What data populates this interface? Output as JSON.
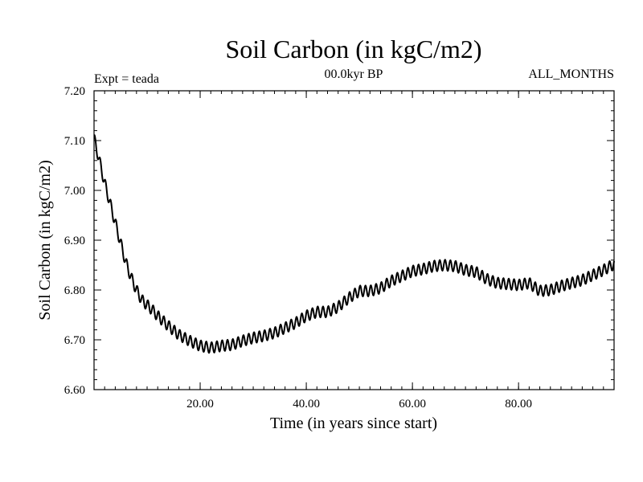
{
  "chart_data": {
    "type": "line",
    "title": "Soil Carbon (in kgC/m2)",
    "subtitle": "00.0kyr BP",
    "expt_label": "Expt = teada",
    "period_label": "ALL_MONTHS",
    "xlabel": "Time (in years since start)",
    "ylabel": "Soil Carbon (in kgC/m2)",
    "xlim": [
      0,
      98
    ],
    "ylim": [
      6.6,
      7.2
    ],
    "x_ticks": [
      20,
      40,
      60,
      80
    ],
    "x_tick_labels": [
      "20.00",
      "40.00",
      "60.00",
      "80.00"
    ],
    "y_ticks": [
      6.6,
      6.7,
      6.8,
      6.9,
      7.0,
      7.1,
      7.2
    ],
    "y_tick_labels": [
      "6.60",
      "6.70",
      "6.80",
      "6.90",
      "7.00",
      "7.10",
      "7.20"
    ],
    "line_color": "#000000",
    "seasonal_amplitude": 0.011,
    "series": [
      {
        "name": "Soil Carbon",
        "trend": [
          [
            0.0,
            7.105
          ],
          [
            1.0,
            7.06
          ],
          [
            2.0,
            7.015
          ],
          [
            3.0,
            6.975
          ],
          [
            4.0,
            6.935
          ],
          [
            5.0,
            6.895
          ],
          [
            6.0,
            6.855
          ],
          [
            7.0,
            6.825
          ],
          [
            8.0,
            6.8
          ],
          [
            9.0,
            6.78
          ],
          [
            10.0,
            6.77
          ],
          [
            11.0,
            6.76
          ],
          [
            12.0,
            6.748
          ],
          [
            14.0,
            6.728
          ],
          [
            16.0,
            6.71
          ],
          [
            18.0,
            6.698
          ],
          [
            20.0,
            6.688
          ],
          [
            22.0,
            6.684
          ],
          [
            24.0,
            6.688
          ],
          [
            26.0,
            6.69
          ],
          [
            28.0,
            6.698
          ],
          [
            30.0,
            6.704
          ],
          [
            32.0,
            6.708
          ],
          [
            34.0,
            6.714
          ],
          [
            36.0,
            6.724
          ],
          [
            38.0,
            6.734
          ],
          [
            40.0,
            6.748
          ],
          [
            42.0,
            6.756
          ],
          [
            44.0,
            6.756
          ],
          [
            46.0,
            6.766
          ],
          [
            48.0,
            6.784
          ],
          [
            50.0,
            6.798
          ],
          [
            52.0,
            6.798
          ],
          [
            54.0,
            6.804
          ],
          [
            56.0,
            6.818
          ],
          [
            58.0,
            6.828
          ],
          [
            60.0,
            6.838
          ],
          [
            62.0,
            6.842
          ],
          [
            64.0,
            6.848
          ],
          [
            66.0,
            6.85
          ],
          [
            68.0,
            6.848
          ],
          [
            70.0,
            6.84
          ],
          [
            72.0,
            6.836
          ],
          [
            74.0,
            6.822
          ],
          [
            76.0,
            6.814
          ],
          [
            78.0,
            6.812
          ],
          [
            80.0,
            6.81
          ],
          [
            82.0,
            6.814
          ],
          [
            84.0,
            6.798
          ],
          [
            86.0,
            6.8
          ],
          [
            88.0,
            6.808
          ],
          [
            90.0,
            6.814
          ],
          [
            92.0,
            6.82
          ],
          [
            94.0,
            6.83
          ],
          [
            96.0,
            6.84
          ],
          [
            98.0,
            6.852
          ]
        ]
      }
    ]
  }
}
